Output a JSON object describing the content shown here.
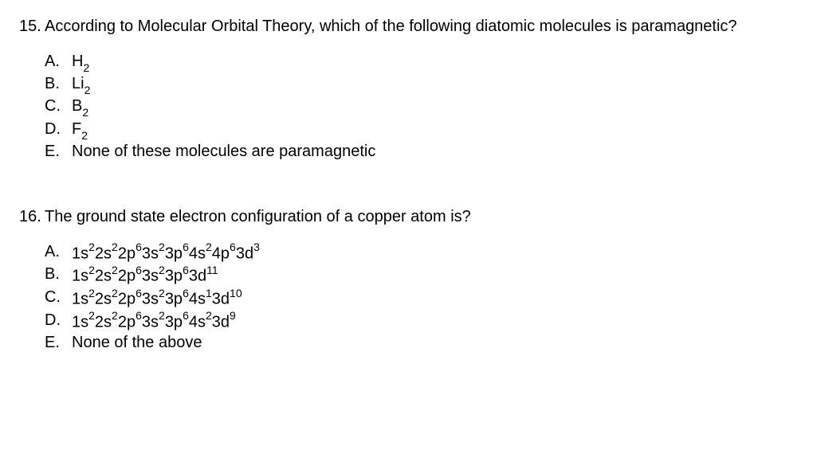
{
  "q15": {
    "number": "15.",
    "text": "According to Molecular Orbital Theory, which of the following diatomic molecules is paramagnetic?",
    "options": {
      "A": {
        "letter": "A.",
        "pre": "H",
        "sub": "2",
        "post": ""
      },
      "B": {
        "letter": "B.",
        "pre": "Li",
        "sub": "2",
        "post": ""
      },
      "C": {
        "letter": "C.",
        "pre": "B",
        "sub": "2",
        "post": ""
      },
      "D": {
        "letter": "D.",
        "pre": "F",
        "sub": "2",
        "post": ""
      },
      "E": {
        "letter": "E.",
        "text": "None of these molecules are paramagnetic"
      }
    }
  },
  "q16": {
    "number": "16.",
    "text": "The ground state electron configuration of a copper atom is?",
    "options": {
      "A": {
        "letter": "A.",
        "config": [
          {
            "base": "1s",
            "sup": "2"
          },
          {
            "base": "2s",
            "sup": "2"
          },
          {
            "base": "2p",
            "sup": "6"
          },
          {
            "base": "3s",
            "sup": "2"
          },
          {
            "base": "3p",
            "sup": "6"
          },
          {
            "base": "4s",
            "sup": "2"
          },
          {
            "base": "4p",
            "sup": "6"
          },
          {
            "base": "3d",
            "sup": "3"
          }
        ]
      },
      "B": {
        "letter": "B.",
        "config": [
          {
            "base": "1s",
            "sup": "2"
          },
          {
            "base": "2s",
            "sup": "2"
          },
          {
            "base": "2p",
            "sup": "6"
          },
          {
            "base": "3s",
            "sup": "2"
          },
          {
            "base": "3p",
            "sup": "6"
          },
          {
            "base": "3d",
            "sup": "11"
          }
        ]
      },
      "C": {
        "letter": "C.",
        "config": [
          {
            "base": "1s",
            "sup": "2"
          },
          {
            "base": "2s",
            "sup": "2"
          },
          {
            "base": "2p",
            "sup": "6"
          },
          {
            "base": "3s",
            "sup": "2"
          },
          {
            "base": "3p",
            "sup": "6"
          },
          {
            "base": "4s",
            "sup": "1"
          },
          {
            "base": "3d",
            "sup": "10"
          }
        ]
      },
      "D": {
        "letter": "D.",
        "config": [
          {
            "base": "1s",
            "sup": "2"
          },
          {
            "base": "2s",
            "sup": "2"
          },
          {
            "base": "2p",
            "sup": "6"
          },
          {
            "base": "3s",
            "sup": "2"
          },
          {
            "base": "3p",
            "sup": "6"
          },
          {
            "base": "4s",
            "sup": "2"
          },
          {
            "base": "3d",
            "sup": "9"
          }
        ]
      },
      "E": {
        "letter": "E.",
        "text": "None of the above"
      }
    }
  },
  "style": {
    "font_family": "Arial",
    "font_size_pt": 15,
    "text_color": "#000000",
    "background_color": "#ffffff"
  }
}
